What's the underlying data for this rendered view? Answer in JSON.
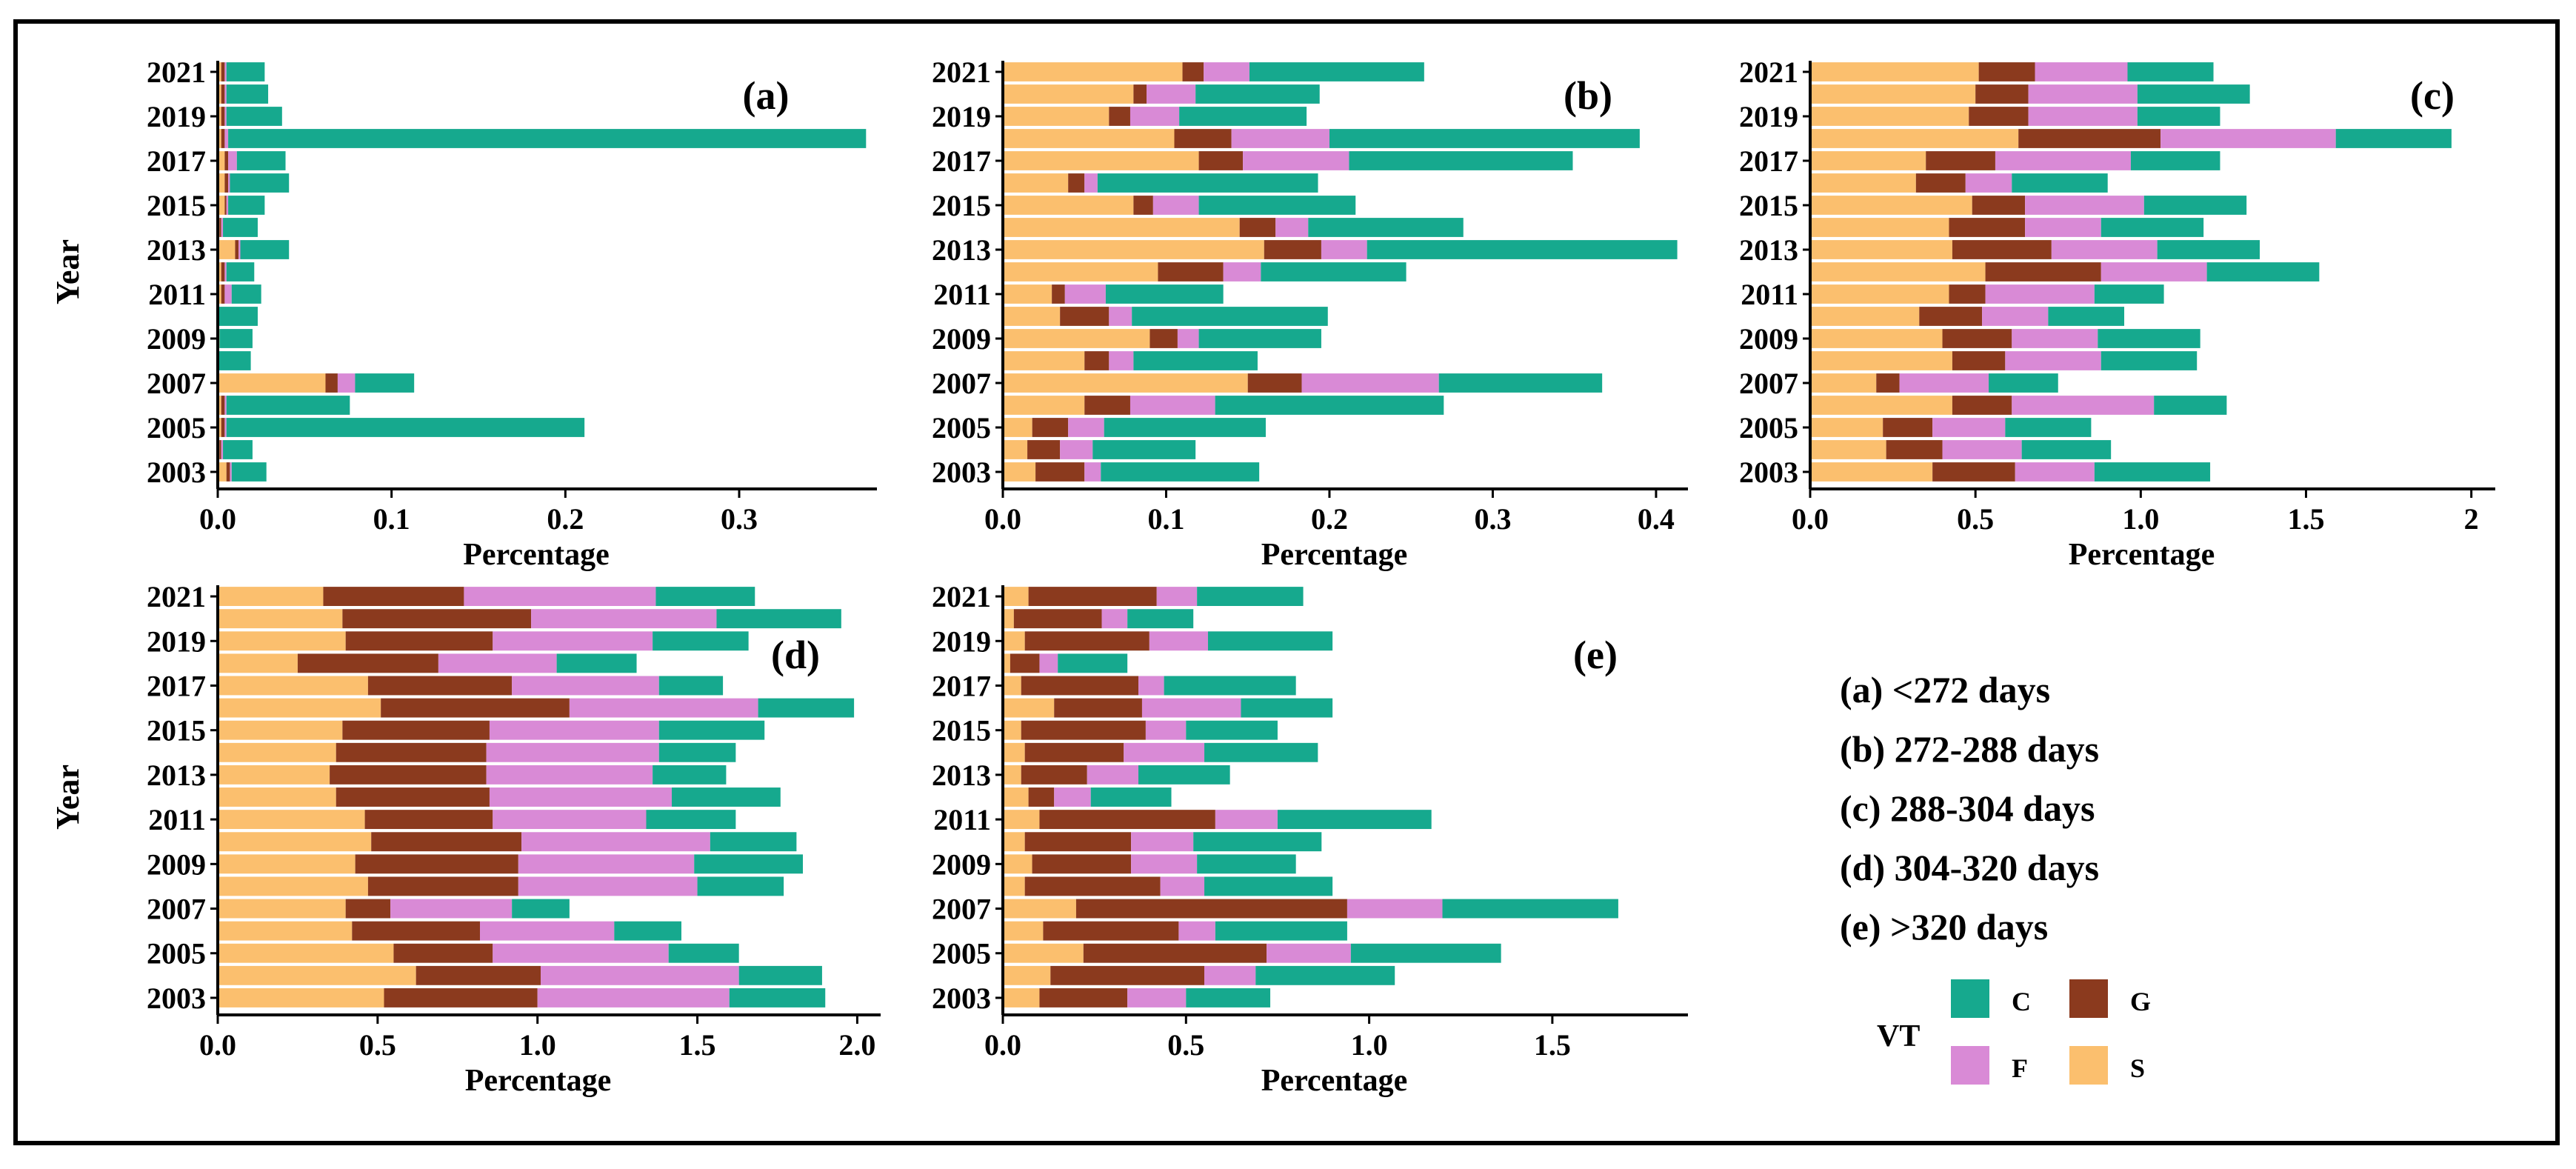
{
  "colors": {
    "S": "#FBBF6E",
    "G": "#8B3A1E",
    "F": "#D98AD6",
    "C": "#16A98E"
  },
  "stack_order": [
    "S",
    "G",
    "F",
    "C"
  ],
  "legend": {
    "ranges": [
      "(a) <272 days",
      "(b) 272-288 days",
      "(c) 288-304 days",
      "(d) 304-320 days",
      "(e) >320 days"
    ],
    "title": "VT",
    "keys": [
      {
        "code": "C",
        "color_key": "C"
      },
      {
        "code": "G",
        "color_key": "G"
      },
      {
        "code": "F",
        "color_key": "F"
      },
      {
        "code": "S",
        "color_key": "S"
      }
    ]
  },
  "chart_data": [
    {
      "type": "bar",
      "orientation": "horizontal",
      "stacked": true,
      "panel_label": "(a)",
      "xlabel": "Percentage",
      "ylabel": "Year",
      "xlim": [
        0,
        0.375
      ],
      "xticks": [
        0.0,
        0.1,
        0.2,
        0.3
      ],
      "xtick_labels": [
        "0.0",
        "0.1",
        "0.2",
        "0.3"
      ],
      "ytick_labels": [
        "2003",
        "2005",
        "2007",
        "2009",
        "2011",
        "2013",
        "2015",
        "2017",
        "2019",
        "2021"
      ],
      "categories": [
        "2003",
        "2004",
        "2005",
        "2006",
        "2007",
        "2008",
        "2009",
        "2010",
        "2011",
        "2012",
        "2013",
        "2014",
        "2015",
        "2016",
        "2017",
        "2018",
        "2019",
        "2020",
        "2021"
      ],
      "series": [
        {
          "key": "S",
          "values": [
            0.005,
            0.001,
            0.002,
            0.002,
            0.062,
            0.0,
            0.001,
            0.0,
            0.002,
            0.002,
            0.01,
            0.001,
            0.004,
            0.004,
            0.004,
            0.002,
            0.002,
            0.002,
            0.002
          ]
        },
        {
          "key": "G",
          "values": [
            0.002,
            0.001,
            0.002,
            0.002,
            0.007,
            0.0,
            0.0,
            0.0,
            0.002,
            0.002,
            0.002,
            0.001,
            0.001,
            0.002,
            0.002,
            0.002,
            0.002,
            0.002,
            0.002
          ]
        },
        {
          "key": "F",
          "values": [
            0.001,
            0.001,
            0.001,
            0.001,
            0.01,
            0.0,
            0.0,
            0.0,
            0.004,
            0.001,
            0.001,
            0.001,
            0.001,
            0.001,
            0.005,
            0.002,
            0.001,
            0.001,
            0.001
          ]
        },
        {
          "key": "C",
          "values": [
            0.02,
            0.017,
            0.206,
            0.071,
            0.034,
            0.019,
            0.019,
            0.023,
            0.017,
            0.016,
            0.028,
            0.02,
            0.021,
            0.034,
            0.028,
            0.367,
            0.032,
            0.024,
            0.022
          ]
        }
      ]
    },
    {
      "type": "bar",
      "orientation": "horizontal",
      "stacked": true,
      "panel_label": "(b)",
      "xlabel": "Percentage",
      "ylabel": "",
      "xlim": [
        0,
        0.415
      ],
      "xticks": [
        0.0,
        0.1,
        0.2,
        0.3,
        0.4
      ],
      "xtick_labels": [
        "0.0",
        "0.1",
        "0.2",
        "0.3",
        "0.4"
      ],
      "ytick_labels": [
        "2003",
        "2005",
        "2007",
        "2009",
        "2011",
        "2013",
        "2015",
        "2017",
        "2019",
        "2021"
      ],
      "categories": [
        "2003",
        "2004",
        "2005",
        "2006",
        "2007",
        "2008",
        "2009",
        "2010",
        "2011",
        "2012",
        "2013",
        "2014",
        "2015",
        "2016",
        "2017",
        "2018",
        "2019",
        "2020",
        "2021"
      ],
      "series": [
        {
          "key": "S",
          "values": [
            0.02,
            0.015,
            0.018,
            0.05,
            0.15,
            0.05,
            0.09,
            0.035,
            0.03,
            0.095,
            0.16,
            0.145,
            0.08,
            0.04,
            0.12,
            0.105,
            0.065,
            0.08,
            0.11
          ]
        },
        {
          "key": "G",
          "values": [
            0.03,
            0.02,
            0.022,
            0.028,
            0.033,
            0.015,
            0.017,
            0.03,
            0.008,
            0.04,
            0.035,
            0.022,
            0.012,
            0.01,
            0.027,
            0.035,
            0.013,
            0.008,
            0.013
          ]
        },
        {
          "key": "F",
          "values": [
            0.01,
            0.02,
            0.022,
            0.052,
            0.084,
            0.015,
            0.013,
            0.014,
            0.025,
            0.023,
            0.028,
            0.02,
            0.028,
            0.008,
            0.065,
            0.06,
            0.03,
            0.03,
            0.028
          ]
        },
        {
          "key": "C",
          "values": [
            0.097,
            0.063,
            0.099,
            0.14,
            0.1,
            0.076,
            0.075,
            0.12,
            0.072,
            0.089,
            0.19,
            0.095,
            0.096,
            0.135,
            0.137,
            0.19,
            0.078,
            0.076,
            0.107
          ]
        }
      ]
    },
    {
      "type": "bar",
      "orientation": "horizontal",
      "stacked": true,
      "panel_label": "(c)",
      "xlabel": "Percentage",
      "ylabel": "",
      "xlim": [
        0,
        2.05
      ],
      "xticks": [
        0.0,
        0.5,
        1.0,
        1.5,
        2.0
      ],
      "xtick_labels": [
        "0.0",
        "0.5",
        "1.0",
        "1.5",
        "2"
      ],
      "ytick_labels": [
        "2003",
        "2005",
        "2007",
        "2009",
        "2011",
        "2013",
        "2015",
        "2017",
        "2019",
        "2021"
      ],
      "categories": [
        "2003",
        "2004",
        "2005",
        "2006",
        "2007",
        "2008",
        "2009",
        "2010",
        "2011",
        "2012",
        "2013",
        "2014",
        "2015",
        "2016",
        "2017",
        "2018",
        "2019",
        "2020",
        "2021"
      ],
      "series": [
        {
          "key": "S",
          "values": [
            0.37,
            0.23,
            0.22,
            0.43,
            0.2,
            0.43,
            0.4,
            0.33,
            0.42,
            0.53,
            0.43,
            0.42,
            0.49,
            0.32,
            0.35,
            0.63,
            0.48,
            0.5,
            0.51
          ]
        },
        {
          "key": "G",
          "values": [
            0.25,
            0.17,
            0.15,
            0.18,
            0.07,
            0.16,
            0.21,
            0.19,
            0.11,
            0.35,
            0.3,
            0.23,
            0.16,
            0.15,
            0.21,
            0.43,
            0.18,
            0.16,
            0.17
          ]
        },
        {
          "key": "F",
          "values": [
            0.24,
            0.24,
            0.22,
            0.43,
            0.27,
            0.29,
            0.26,
            0.2,
            0.33,
            0.32,
            0.32,
            0.23,
            0.36,
            0.14,
            0.41,
            0.53,
            0.33,
            0.33,
            0.28
          ]
        },
        {
          "key": "C",
          "values": [
            0.35,
            0.27,
            0.26,
            0.22,
            0.21,
            0.29,
            0.31,
            0.23,
            0.21,
            0.34,
            0.31,
            0.31,
            0.31,
            0.29,
            0.27,
            0.35,
            0.25,
            0.34,
            0.26
          ]
        }
      ]
    },
    {
      "type": "bar",
      "orientation": "horizontal",
      "stacked": true,
      "panel_label": "(d)",
      "xlabel": "Percentage",
      "ylabel": "Year",
      "xlim": [
        0,
        2.05
      ],
      "xticks": [
        0.0,
        0.5,
        1.0,
        1.5,
        2.0
      ],
      "xtick_labels": [
        "0.0",
        "0.5",
        "1.0",
        "1.5",
        "2.0"
      ],
      "ytick_labels": [
        "2003",
        "2005",
        "2007",
        "2009",
        "2011",
        "2013",
        "2015",
        "2017",
        "2019",
        "2021"
      ],
      "categories": [
        "2003",
        "2004",
        "2005",
        "2006",
        "2007",
        "2008",
        "2009",
        "2010",
        "2011",
        "2012",
        "2013",
        "2014",
        "2015",
        "2016",
        "2017",
        "2018",
        "2019",
        "2020",
        "2021"
      ],
      "series": [
        {
          "key": "S",
          "values": [
            0.52,
            0.62,
            0.55,
            0.42,
            0.4,
            0.47,
            0.43,
            0.48,
            0.46,
            0.37,
            0.35,
            0.37,
            0.39,
            0.51,
            0.47,
            0.25,
            0.4,
            0.39,
            0.33
          ]
        },
        {
          "key": "G",
          "values": [
            0.48,
            0.39,
            0.31,
            0.4,
            0.14,
            0.47,
            0.51,
            0.47,
            0.4,
            0.48,
            0.49,
            0.47,
            0.46,
            0.59,
            0.45,
            0.44,
            0.46,
            0.59,
            0.44
          ]
        },
        {
          "key": "F",
          "values": [
            0.6,
            0.62,
            0.55,
            0.42,
            0.38,
            0.56,
            0.55,
            0.59,
            0.48,
            0.57,
            0.52,
            0.54,
            0.53,
            0.59,
            0.46,
            0.37,
            0.5,
            0.58,
            0.6
          ]
        },
        {
          "key": "C",
          "values": [
            0.3,
            0.26,
            0.22,
            0.21,
            0.18,
            0.27,
            0.34,
            0.27,
            0.28,
            0.34,
            0.23,
            0.24,
            0.33,
            0.3,
            0.2,
            0.25,
            0.3,
            0.39,
            0.31
          ]
        }
      ]
    },
    {
      "type": "bar",
      "orientation": "horizontal",
      "stacked": true,
      "panel_label": "(e)",
      "xlabel": "Percentage",
      "ylabel": "",
      "xlim": [
        0,
        1.85
      ],
      "xticks": [
        0.0,
        0.5,
        1.0,
        1.5
      ],
      "xtick_labels": [
        "0.0",
        "0.5",
        "1.0",
        "1.5"
      ],
      "ytick_labels": [
        "2003",
        "2005",
        "2007",
        "2009",
        "2011",
        "2013",
        "2015",
        "2017",
        "2019",
        "2021"
      ],
      "categories": [
        "2003",
        "2004",
        "2005",
        "2006",
        "2007",
        "2008",
        "2009",
        "2010",
        "2011",
        "2012",
        "2013",
        "2014",
        "2015",
        "2016",
        "2017",
        "2018",
        "2019",
        "2020",
        "2021"
      ],
      "series": [
        {
          "key": "S",
          "values": [
            0.1,
            0.13,
            0.22,
            0.11,
            0.2,
            0.06,
            0.08,
            0.06,
            0.1,
            0.07,
            0.05,
            0.06,
            0.05,
            0.14,
            0.05,
            0.02,
            0.06,
            0.03,
            0.07
          ]
        },
        {
          "key": "G",
          "values": [
            0.24,
            0.42,
            0.5,
            0.37,
            0.74,
            0.37,
            0.27,
            0.29,
            0.48,
            0.07,
            0.18,
            0.27,
            0.34,
            0.24,
            0.32,
            0.08,
            0.34,
            0.24,
            0.35
          ]
        },
        {
          "key": "F",
          "values": [
            0.16,
            0.14,
            0.23,
            0.1,
            0.26,
            0.12,
            0.18,
            0.17,
            0.17,
            0.1,
            0.14,
            0.22,
            0.11,
            0.27,
            0.07,
            0.05,
            0.16,
            0.07,
            0.11
          ]
        },
        {
          "key": "C",
          "values": [
            0.23,
            0.38,
            0.41,
            0.36,
            0.48,
            0.35,
            0.27,
            0.35,
            0.42,
            0.22,
            0.25,
            0.31,
            0.25,
            0.25,
            0.36,
            0.19,
            0.34,
            0.18,
            0.29
          ]
        }
      ]
    }
  ]
}
